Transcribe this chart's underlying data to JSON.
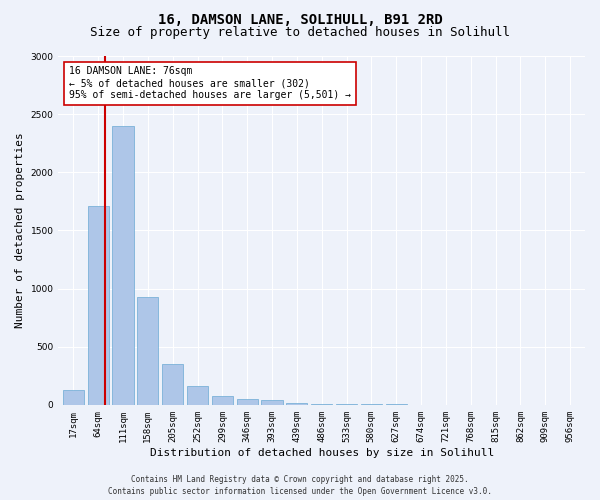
{
  "title1": "16, DAMSON LANE, SOLIHULL, B91 2RD",
  "title2": "Size of property relative to detached houses in Solihull",
  "xlabel": "Distribution of detached houses by size in Solihull",
  "ylabel": "Number of detached properties",
  "bar_labels": [
    "17sqm",
    "64sqm",
    "111sqm",
    "158sqm",
    "205sqm",
    "252sqm",
    "299sqm",
    "346sqm",
    "393sqm",
    "439sqm",
    "486sqm",
    "533sqm",
    "580sqm",
    "627sqm",
    "674sqm",
    "721sqm",
    "768sqm",
    "815sqm",
    "862sqm",
    "909sqm",
    "956sqm"
  ],
  "bar_heights": [
    130,
    1710,
    2400,
    930,
    350,
    160,
    80,
    50,
    40,
    20,
    10,
    5,
    5,
    3,
    2,
    1,
    1,
    1,
    0,
    0,
    0
  ],
  "bar_color": "#aec6e8",
  "bar_edgecolor": "#6aaad4",
  "bar_width": 0.85,
  "vline_x": 1.28,
  "vline_color": "#cc0000",
  "ylim": [
    0,
    3000
  ],
  "yticks": [
    0,
    500,
    1000,
    1500,
    2000,
    2500,
    3000
  ],
  "annotation_text": "16 DAMSON LANE: 76sqm\n← 5% of detached houses are smaller (302)\n95% of semi-detached houses are larger (5,501) →",
  "annotation_box_color": "#ffffff",
  "annotation_box_edgecolor": "#cc0000",
  "background_color": "#eef2fa",
  "grid_color": "#ffffff",
  "footer_line1": "Contains HM Land Registry data © Crown copyright and database right 2025.",
  "footer_line2": "Contains public sector information licensed under the Open Government Licence v3.0.",
  "title_fontsize": 10,
  "subtitle_fontsize": 9,
  "tick_fontsize": 6.5,
  "label_fontsize": 8,
  "annotation_fontsize": 7,
  "footer_fontsize": 5.5
}
